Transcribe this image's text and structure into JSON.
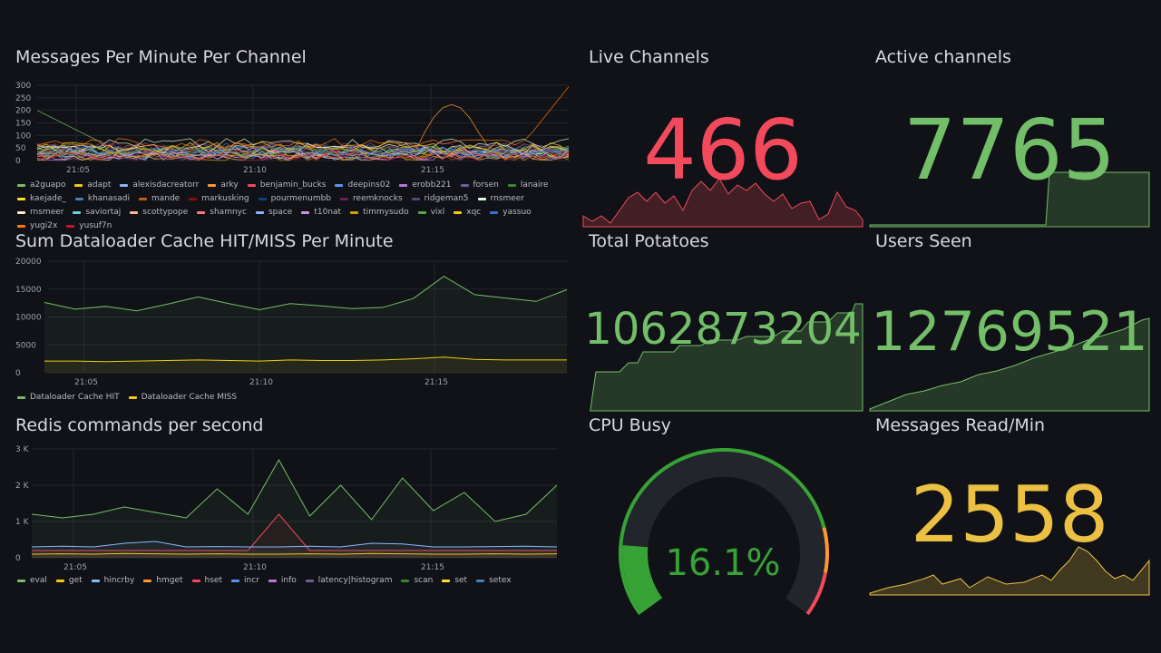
{
  "panels": {
    "messages": {
      "title": "Messages Per Minute Per Channel",
      "y_ticks": [
        "300",
        "250",
        "200",
        "150",
        "100",
        "50",
        "0"
      ],
      "x_ticks": [
        "21:05",
        "21:10",
        "21:15"
      ],
      "legend": [
        {
          "name": "a2guapo",
          "color": "#73bf69"
        },
        {
          "name": "adapt",
          "color": "#f2cc0c"
        },
        {
          "name": "alexisdacreatorr",
          "color": "#8ab8ff"
        },
        {
          "name": "arky",
          "color": "#ff9830"
        },
        {
          "name": "benjamin_bucks",
          "color": "#f2495c"
        },
        {
          "name": "deepins02",
          "color": "#5794f2"
        },
        {
          "name": "erobb221",
          "color": "#b877d9"
        },
        {
          "name": "forsen",
          "color": "#705da0"
        },
        {
          "name": "lanaire",
          "color": "#37872d"
        },
        {
          "name": "kaejade_",
          "color": "#fade2a"
        },
        {
          "name": "khanasadi",
          "color": "#447ebc"
        },
        {
          "name": "mande",
          "color": "#c15c17"
        },
        {
          "name": "markusking",
          "color": "#890f02"
        },
        {
          "name": "pourmenumbb",
          "color": "#0a437c"
        },
        {
          "name": "reemknocks",
          "color": "#6d1f62"
        },
        {
          "name": "ridgeman5",
          "color": "#584477"
        },
        {
          "name": "rnsmeer",
          "color": "#e0f9d7"
        },
        {
          "name": "rnsmeer",
          "color": "#fceaca"
        },
        {
          "name": "saviortaj",
          "color": "#6ed0e0"
        },
        {
          "name": "scottypope",
          "color": "#f9ba8f"
        },
        {
          "name": "shamnyc",
          "color": "#ff7383"
        },
        {
          "name": "space",
          "color": "#8ab8ff"
        },
        {
          "name": "t10nat",
          "color": "#ca95e5"
        },
        {
          "name": "timmysudo",
          "color": "#cca300"
        },
        {
          "name": "vixl",
          "color": "#56a64b"
        },
        {
          "name": "xqc",
          "color": "#f2cc0c"
        },
        {
          "name": "yassuo",
          "color": "#3274d9"
        },
        {
          "name": "yugi2x",
          "color": "#ff780a"
        },
        {
          "name": "yusuf7n",
          "color": "#c4162a"
        }
      ]
    },
    "dataloader": {
      "title": "Sum Dataloader Cache HIT/MISS Per Minute",
      "y_ticks": [
        "20000",
        "15000",
        "10000",
        "5000",
        "0"
      ],
      "x_ticks": [
        "21:05",
        "21:10",
        "21:15"
      ],
      "legend": [
        {
          "name": "Dataloader Cache HIT",
          "color": "#73bf69"
        },
        {
          "name": "Dataloader Cache MISS",
          "color": "#f2cc0c"
        }
      ]
    },
    "redis": {
      "title": "Redis commands per second",
      "y_ticks": [
        "3 K",
        "2 K",
        "1 K",
        "0"
      ],
      "x_ticks": [
        "21:05",
        "21:10",
        "21:15"
      ],
      "legend": [
        {
          "name": "eval",
          "color": "#73bf69"
        },
        {
          "name": "get",
          "color": "#f2cc0c"
        },
        {
          "name": "hincrby",
          "color": "#8ab8ff"
        },
        {
          "name": "hmget",
          "color": "#ff9830"
        },
        {
          "name": "hset",
          "color": "#f2495c"
        },
        {
          "name": "incr",
          "color": "#5794f2"
        },
        {
          "name": "info",
          "color": "#b877d9"
        },
        {
          "name": "latency|histogram",
          "color": "#705da0"
        },
        {
          "name": "scan",
          "color": "#37872d"
        },
        {
          "name": "set",
          "color": "#fade2a"
        },
        {
          "name": "setex",
          "color": "#447ebc"
        }
      ]
    },
    "live_channels": {
      "title": "Live Channels",
      "value": "466",
      "color": "#f2495c"
    },
    "active_channels": {
      "title": "Active channels",
      "value": "7765",
      "color": "#73bf69"
    },
    "total_potatoes": {
      "title": "Total Potatoes",
      "value": "1062873204",
      "color": "#73bf69"
    },
    "users_seen": {
      "title": "Users Seen",
      "value": "12769521",
      "color": "#73bf69"
    },
    "cpu_busy": {
      "title": "CPU Busy",
      "value": "16.1%",
      "percent": 16.1,
      "color": "#37a236"
    },
    "messages_read": {
      "title": "Messages Read/Min",
      "value": "2558",
      "color": "#ebc043"
    }
  },
  "chart_data": [
    {
      "type": "line",
      "title": "Sum Dataloader Cache HIT/MISS Per Minute",
      "x": [
        "21:02",
        "21:03",
        "21:04",
        "21:05",
        "21:06",
        "21:07",
        "21:08",
        "21:09",
        "21:10",
        "21:11",
        "21:12",
        "21:13",
        "21:14",
        "21:15",
        "21:16",
        "21:17",
        "21:18",
        "21:19"
      ],
      "ylim": [
        0,
        20000
      ],
      "series": [
        {
          "name": "Dataloader Cache HIT",
          "values": [
            12600,
            11400,
            11900,
            11100,
            12300,
            13600,
            12400,
            11300,
            12400,
            12000,
            11500,
            11700,
            13300,
            17300,
            14000,
            13400,
            12800,
            14900
          ]
        },
        {
          "name": "Dataloader Cache MISS",
          "values": [
            2100,
            2100,
            2000,
            2100,
            2200,
            2300,
            2200,
            2100,
            2300,
            2200,
            2200,
            2300,
            2500,
            2800,
            2400,
            2300,
            2300,
            2300
          ]
        }
      ]
    },
    {
      "type": "line",
      "title": "Redis commands per second",
      "x": [
        "21:02",
        "21:03",
        "21:04",
        "21:05",
        "21:06",
        "21:07",
        "21:08",
        "21:09",
        "21:10",
        "21:11",
        "21:12",
        "21:13",
        "21:14",
        "21:15",
        "21:16",
        "21:17",
        "21:18",
        "21:19"
      ],
      "ylim": [
        0,
        3000
      ],
      "series": [
        {
          "name": "eval",
          "values": [
            1200,
            1100,
            1200,
            1400,
            1250,
            1100,
            1900,
            1200,
            2700,
            1150,
            2000,
            1050,
            2200,
            1300,
            1800,
            1000,
            1200,
            2000
          ]
        },
        {
          "name": "hset",
          "values": [
            200,
            200,
            200,
            200,
            200,
            200,
            200,
            200,
            1200,
            200,
            200,
            200,
            200,
            200,
            200,
            200,
            200,
            200
          ]
        },
        {
          "name": "incr",
          "values": [
            300,
            320,
            300,
            400,
            450,
            300,
            310,
            300,
            300,
            320,
            300,
            400,
            380,
            300,
            300,
            310,
            320,
            300
          ]
        },
        {
          "name": "get",
          "values": [
            100,
            110,
            100,
            120,
            110,
            100,
            110,
            100,
            100,
            110,
            100,
            120,
            110,
            100,
            100,
            110,
            100,
            110
          ]
        }
      ]
    }
  ]
}
